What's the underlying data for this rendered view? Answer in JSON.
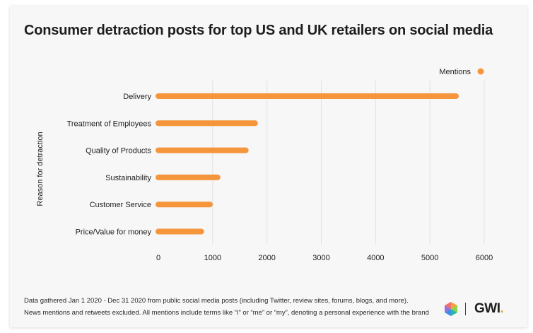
{
  "brand": {
    "text": "GWI",
    "dot": "."
  },
  "footnote": {
    "line1": "Data gathered Jan 1 2020 - Dec 31 2020 from public social media posts (including Twitter, review sites, forums, blogs, and more).",
    "line2": "News mentions and retweets excluded. All mentions include terms like “I” or “me” or “my”, denoting a personal experience with the brand"
  },
  "colors": {
    "bar": "#f5963c",
    "grid": "#e0e0e0",
    "text": "#1e1e1e"
  },
  "chart_data": {
    "type": "bar",
    "orientation": "horizontal",
    "title": "Consumer detraction posts for top US and UK retailers on social media",
    "xlabel": "",
    "ylabel": "Reason for detraction",
    "categories": [
      "Delivery",
      "Treatment of Employees",
      "Quality of Products",
      "Sustainability",
      "Customer Service",
      "Price/Value for money"
    ],
    "series": [
      {
        "name": "Mentions",
        "values": [
          5480,
          1780,
          1610,
          1090,
          950,
          790
        ]
      }
    ],
    "xlim": [
      0,
      6000
    ],
    "xticks": [
      0,
      1000,
      2000,
      3000,
      4000,
      5000,
      6000
    ],
    "grid": true,
    "legend": "top-right"
  }
}
